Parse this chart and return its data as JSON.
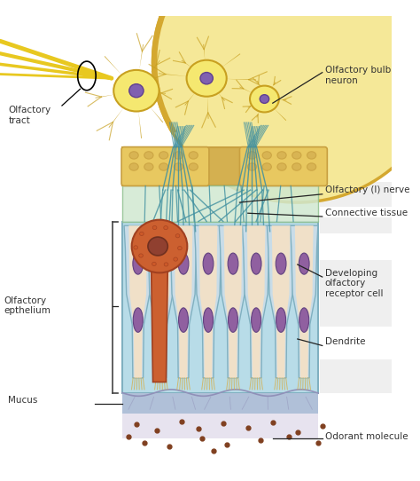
{
  "bg_color": "#ffffff",
  "labels": {
    "olfactory_tract": "Olfactory\ntract",
    "olfactory_bulb_neuron": "Olfactory bulb\nneuron",
    "olfactory_nerve": "Olfactory (I) nerve",
    "connective_tissue": "Connective tissue",
    "developing_cell": "Developing\nolfactory\nreceptor cell",
    "dendrite": "Dendrite",
    "olfactory_epithelium": "Olfactory\nepthelium",
    "mucus": "Mucus",
    "odorant": "Odorant molecule"
  },
  "colors": {
    "neuron_body": "#e8c840",
    "neuron_fill": "#f5e870",
    "neuron_edge": "#c8a020",
    "olfactory_bulb": "#f5e898",
    "bulb_edge": "#d4a830",
    "bone_yellow": "#c8a040",
    "bone_fill": "#e8c860",
    "bone_bg": "#d4b050",
    "epithelium_blue": "#b8dce8",
    "cell_fill": "#f0e0c8",
    "cell_edge": "#80b0c0",
    "cell_nucleus": "#9060a0",
    "cell_nucleus_edge": "#604080",
    "support_cell_top": "#c8dce8",
    "basal_cell_fill": "#cc6030",
    "basal_cell_edge": "#a04020",
    "mucus_blue": "#b0c0d8",
    "mucus_wavy": "#9090b8",
    "odorant_brown": "#804020",
    "nerve_teal": "#4090a0",
    "connective_bg": "#d0e8d0",
    "connective_edge": "#90c090",
    "bracket_color": "#444444",
    "text_color": "#333333",
    "label_line": "#222222",
    "tract_yellow": "#e8c820",
    "gray_label_bg": "#e0e0e0"
  },
  "figsize": [
    4.74,
    5.42
  ],
  "dpi": 100
}
